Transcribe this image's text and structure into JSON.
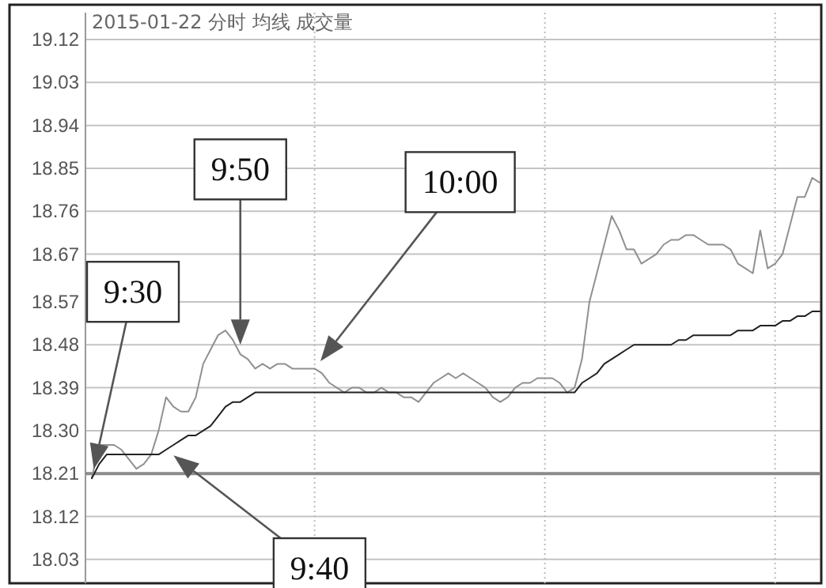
{
  "chart_data": {
    "type": "line",
    "title": "2015-01-22 分时 均线 成交量",
    "categories": [
      null,
      null,
      null,
      null,
      null,
      null,
      null,
      null,
      null,
      null,
      null,
      null,
      null,
      null,
      null,
      null,
      null,
      null,
      null,
      null,
      null,
      null,
      null,
      null,
      null,
      null,
      null,
      null,
      null,
      null,
      null,
      null,
      null,
      null,
      null,
      null,
      null,
      null,
      null,
      null,
      null,
      null,
      null,
      null,
      null,
      null,
      null,
      null,
      null,
      null,
      null,
      null,
      null,
      null,
      null,
      null,
      null,
      null,
      null,
      null,
      null,
      null,
      null,
      null,
      null,
      null,
      null,
      null,
      null,
      null,
      null,
      null,
      null,
      null,
      null,
      null,
      null,
      null,
      null,
      null,
      null,
      null,
      null,
      null,
      null,
      null,
      null,
      null,
      null,
      null,
      null,
      null,
      null,
      null,
      null,
      null,
      null,
      null,
      null
    ],
    "ylim": [
      17.98,
      19.12
    ],
    "yticks": [
      18.03,
      18.12,
      18.21,
      {
        "value": 18.3,
        "label": "18.30"
      },
      18.39,
      18.48,
      18.57,
      18.67,
      18.76,
      18.85,
      18.94,
      19.03,
      19.12
    ],
    "grid": true,
    "tick_labels": "y",
    "marker": "none",
    "line_style": "solid",
    "ref_lines": [
      {
        "axis": "y",
        "value": 18.21,
        "color": "#8a8a8a"
      }
    ],
    "series": [
      {
        "color": "#909090",
        "values": [
          18.2,
          18.27,
          18.27,
          18.27,
          18.26,
          18.24,
          18.22,
          18.23,
          18.25,
          18.3,
          18.37,
          18.35,
          18.34,
          18.34,
          18.37,
          18.44,
          18.47,
          18.5,
          18.51,
          18.49,
          18.46,
          18.45,
          18.43,
          18.44,
          18.43,
          18.44,
          18.44,
          18.43,
          18.43,
          18.43,
          18.43,
          18.42,
          18.4,
          18.39,
          18.38,
          18.39,
          18.39,
          18.38,
          18.38,
          18.39,
          18.38,
          18.38,
          18.37,
          18.37,
          18.36,
          18.38,
          18.4,
          18.41,
          18.42,
          18.41,
          18.42,
          18.41,
          18.4,
          18.39,
          18.37,
          18.36,
          18.37,
          18.39,
          18.4,
          18.4,
          18.41,
          18.41,
          18.41,
          18.4,
          18.38,
          18.39,
          18.45,
          18.57,
          18.63,
          18.69,
          18.75,
          18.72,
          18.68,
          18.68,
          18.65,
          18.66,
          18.67,
          18.69,
          18.7,
          18.7,
          18.71,
          18.71,
          18.7,
          18.69,
          18.69,
          18.69,
          18.68,
          18.65,
          18.64,
          18.63,
          18.72,
          18.64,
          18.65,
          18.67,
          18.73,
          18.79,
          18.79,
          18.83,
          18.82
        ]
      },
      {
        "color": "#222222",
        "values": [
          18.2,
          18.23,
          18.25,
          18.25,
          18.25,
          18.25,
          18.25,
          18.25,
          18.25,
          18.25,
          18.26,
          18.27,
          18.28,
          18.29,
          18.29,
          18.3,
          18.31,
          18.33,
          18.35,
          18.36,
          18.36,
          18.37,
          18.38,
          18.38,
          18.38,
          18.38,
          18.38,
          18.38,
          18.38,
          18.38,
          18.38,
          18.38,
          18.38,
          18.38,
          18.38,
          18.38,
          18.38,
          18.38,
          18.38,
          18.38,
          18.38,
          18.38,
          18.38,
          18.38,
          18.38,
          18.38,
          18.38,
          18.38,
          18.38,
          18.38,
          18.38,
          18.38,
          18.38,
          18.38,
          18.38,
          18.38,
          18.38,
          18.38,
          18.38,
          18.38,
          18.38,
          18.38,
          18.38,
          18.38,
          18.38,
          18.38,
          18.4,
          18.41,
          18.42,
          18.44,
          18.45,
          18.46,
          18.47,
          18.48,
          18.48,
          18.48,
          18.48,
          18.48,
          18.48,
          18.49,
          18.49,
          18.5,
          18.5,
          18.5,
          18.5,
          18.5,
          18.5,
          18.51,
          18.51,
          18.51,
          18.52,
          18.52,
          18.52,
          18.53,
          18.53,
          18.54,
          18.54,
          18.55,
          18.55
        ]
      }
    ],
    "annotations": [
      "9:30",
      "9:40",
      "9:50",
      "10:00"
    ]
  }
}
